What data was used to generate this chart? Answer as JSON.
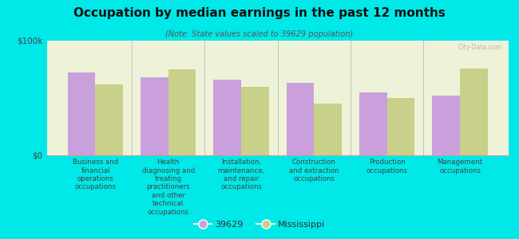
{
  "title": "Occupation by median earnings in the past 12 months",
  "subtitle": "(Note: State values scaled to 39629 population)",
  "background_color": "#00e8e8",
  "plot_bg_color": "#eef2d8",
  "categories": [
    "Business and\nfinancial\noperations\noccupations",
    "Health\ndiagnosing and\ntreating\npractitioners\nand other\ntechnical\noccupations",
    "Installation,\nmaintenance,\nand repair\noccupations",
    "Construction\nand extraction\noccupations",
    "Production\noccupations",
    "Management\noccupations"
  ],
  "values_local": [
    72000,
    68000,
    66000,
    63000,
    55000,
    52000
  ],
  "values_state": [
    62000,
    75000,
    60000,
    45000,
    50000,
    76000
  ],
  "bar_color_local": "#c9a0dc",
  "bar_color_state": "#c8d08a",
  "ymax": 100000,
  "yticks": [
    0,
    100000
  ],
  "ytick_labels": [
    "$0",
    "$100k"
  ],
  "legend_local": "39629",
  "legend_state": "Mississippi",
  "watermark": "City-Data.com"
}
